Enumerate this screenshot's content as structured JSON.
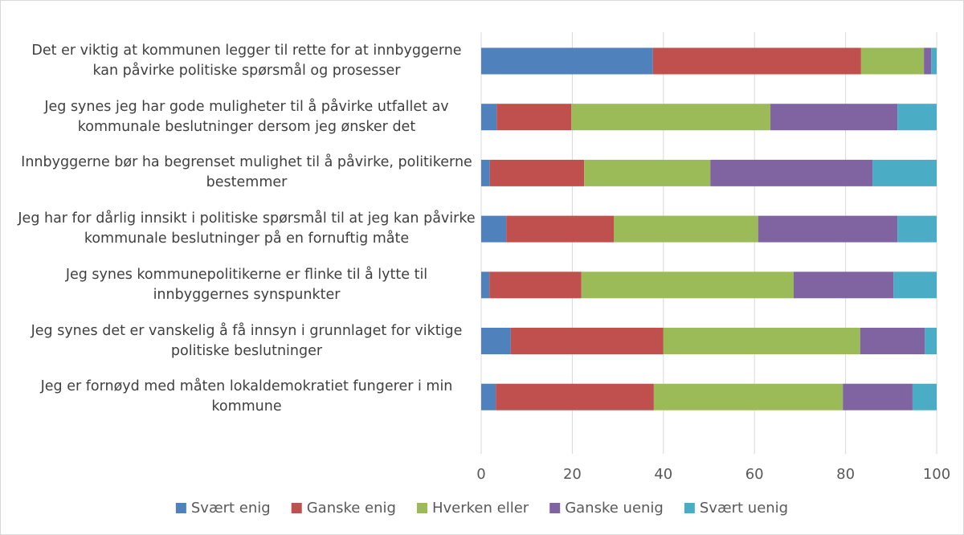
{
  "chart_data": {
    "type": "stacked-barh",
    "categories": [
      "Det er viktig at kommunen legger til rette for at innbyggerne kan påvirke politiske spørsmål og prosesser",
      "Jeg synes jeg har gode muligheter til å påvirke utfallet av kommunale beslutninger dersom jeg ønsker det",
      "Innbyggerne bør ha begrenset mulighet til å påvirke, politikerne bestemmer",
      "Jeg har for dårlig innsikt i politiske spørsmål til at jeg kan påvirke kommunale beslutninger på en fornuftig måte",
      "Jeg synes kommunepolitikerne er flinke til å lytte til innbyggernes synspunkter",
      "Jeg synes det er vanskelig å få innsyn i grunnlaget for viktige politiske beslutninger",
      "Jeg er fornøyd med måten lokaldemokratiet fungerer i min kommune"
    ],
    "series": [
      {
        "name": "Svært enig",
        "color": "#4f81bd",
        "values": [
          37.7,
          3.4,
          1.9,
          5.5,
          1.8,
          6.5,
          3.2
        ]
      },
      {
        "name": "Ganske enig",
        "color": "#c0504d",
        "values": [
          45.7,
          16.4,
          20.7,
          23.6,
          20.2,
          33.5,
          34.7
        ]
      },
      {
        "name": "Hverken eller",
        "color": "#9bbb59",
        "values": [
          13.8,
          43.7,
          27.7,
          31.7,
          46.6,
          43.2,
          41.5
        ]
      },
      {
        "name": "Ganske uenig",
        "color": "#8064a2",
        "values": [
          1.6,
          27.9,
          35.6,
          30.6,
          21.9,
          14.2,
          15.3
        ]
      },
      {
        "name": "Svært uenig",
        "color": "#4bacc6",
        "values": [
          1.2,
          8.6,
          14.1,
          8.6,
          9.5,
          2.6,
          5.3
        ]
      }
    ],
    "xlim": [
      0,
      100
    ],
    "xticks": [
      0,
      20,
      40,
      60,
      80,
      100
    ],
    "grid": true,
    "legend": "bottom"
  }
}
